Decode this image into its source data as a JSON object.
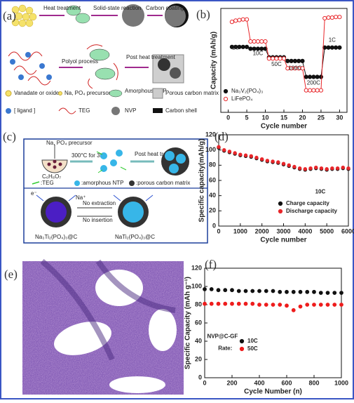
{
  "panels": {
    "a": "(a)",
    "b": "(b)",
    "c": "(c)",
    "d": "(d)",
    "e": "(e)",
    "f": "(f)"
  },
  "diagram_a": {
    "steps_top": [
      "Heat treatment",
      "Solid-state reaction",
      "Carbon coating"
    ],
    "steps_bottom": [
      "Polyol process",
      "Post heat treatment"
    ],
    "legend": [
      "Vanadate or oxide",
      "Na, PO₄ precursor",
      "Amorphous NVP",
      "Porous carbon matrix",
      "TEG",
      "NVP",
      "Carbon shell"
    ]
  },
  "diagram_c": {
    "precursor": "Na, PO₄ precursor",
    "condition": "300°C for 3h",
    "solvent": "C₆H₈O₇",
    "post": "Post heat treatment",
    "legend": [
      ":TEG",
      ":amorphous NTP",
      ":porous carbon matrix"
    ],
    "arrows": [
      "No extraction",
      "No insertion"
    ],
    "left_name": "Na₃Ti₂(PO₄)₃@C",
    "right_name": "NaTi₂(PO₄)₃@C",
    "electron": "e⁻",
    "ion": "Na⁺"
  },
  "chart_data": [
    {
      "type": "line",
      "xlabel": "Cycle number",
      "ylabel": "Capacity (mAh/g)",
      "x": [
        1,
        2,
        3,
        4,
        5,
        6,
        7,
        8,
        9,
        10,
        11,
        12,
        13,
        14,
        15,
        16,
        17,
        18,
        19,
        20,
        21,
        22,
        23,
        24,
        25,
        26,
        27,
        28,
        29,
        30
      ],
      "xlim": [
        -2,
        32
      ],
      "xticks": [
        0,
        5,
        10,
        15,
        20,
        25,
        30
      ],
      "ylim": [
        0,
        170
      ],
      "series": [
        {
          "name": "Na₃V₂(PO₄)₃",
          "color": "#111111",
          "filled": true,
          "values": [
            107,
            107,
            107,
            107,
            107,
            104,
            104,
            104,
            104,
            104,
            90,
            90,
            90,
            90,
            90,
            84,
            84,
            84,
            84,
            84,
            58,
            58,
            58,
            58,
            58,
            106,
            106,
            106,
            106,
            106
          ]
        },
        {
          "name": "LiFePO₄",
          "color": "#e8262a",
          "filled": false,
          "values": [
            148,
            150,
            151,
            152,
            152,
            116,
            116,
            116,
            116,
            116,
            88,
            88,
            88,
            88,
            88,
            72,
            72,
            72,
            72,
            72,
            36,
            36,
            36,
            36,
            36,
            154,
            155,
            155,
            156,
            156
          ]
        }
      ],
      "annotations": [
        "1C",
        "10C",
        "50C",
        "100C",
        "200C",
        "1C"
      ],
      "legend": "lower left"
    },
    {
      "type": "scatter",
      "xlabel": "Cycle number",
      "ylabel": "Specific capacity(mAh/g)",
      "x": [
        0,
        250,
        500,
        750,
        1000,
        1250,
        1500,
        1750,
        2000,
        2250,
        2500,
        2750,
        3000,
        3250,
        3500,
        3750,
        4000,
        4250,
        4500,
        4750,
        5000,
        5250,
        5500,
        5750,
        6000
      ],
      "xlim": [
        0,
        6000
      ],
      "xticks": [
        0,
        1000,
        2000,
        3000,
        4000,
        5000,
        6000
      ],
      "ylim": [
        0,
        120
      ],
      "yticks": [
        0,
        20,
        40,
        60,
        80,
        100,
        120
      ],
      "series": [
        {
          "name": "Charge capacity",
          "color": "#111111",
          "filled": true,
          "values": [
            103,
            99,
            97,
            95,
            93,
            92,
            91,
            89,
            87,
            85,
            84,
            83,
            81,
            79,
            77,
            75,
            74,
            75,
            76,
            75,
            74,
            75,
            75,
            76,
            75
          ]
        },
        {
          "name": "Discharge capacity",
          "color": "#e8262a",
          "filled": true,
          "values": [
            104,
            100,
            98,
            96,
            94,
            93,
            92,
            90,
            88,
            86,
            85,
            84,
            82,
            80,
            78,
            76,
            75,
            76,
            77,
            76,
            75,
            76,
            76,
            77,
            76
          ]
        }
      ],
      "annotations": [
        "10C"
      ],
      "legend": "lower right"
    },
    {
      "type": "scatter",
      "xlabel": "Cycle Number (n)",
      "ylabel": "Specific Capacity (mAh g⁻¹)",
      "x": [
        0,
        50,
        100,
        150,
        200,
        250,
        300,
        350,
        400,
        450,
        500,
        550,
        600,
        650,
        700,
        750,
        800,
        850,
        900,
        950,
        1000
      ],
      "xlim": [
        0,
        1000
      ],
      "xticks": [
        0,
        200,
        400,
        600,
        800,
        1000
      ],
      "ylim": [
        0,
        120
      ],
      "yticks": [
        0,
        20,
        40,
        60,
        80,
        100,
        120
      ],
      "series": [
        {
          "name": "10C",
          "color": "#111111",
          "filled": true,
          "values": [
            97,
            97,
            96,
            96,
            96,
            95,
            95,
            95,
            95,
            95,
            95,
            94,
            94,
            94,
            94,
            94,
            94,
            93,
            93,
            93,
            93
          ]
        },
        {
          "name": "50C",
          "color": "#ee1c1c",
          "filled": true,
          "values": [
            81,
            81,
            81,
            81,
            81,
            81,
            81,
            81,
            80,
            80,
            80,
            80,
            79,
            74,
            78,
            80,
            80,
            80,
            80,
            80,
            80
          ]
        }
      ],
      "annotations": [
        "NVP@C-GF",
        "Rate:"
      ],
      "legend": "lower left"
    }
  ]
}
